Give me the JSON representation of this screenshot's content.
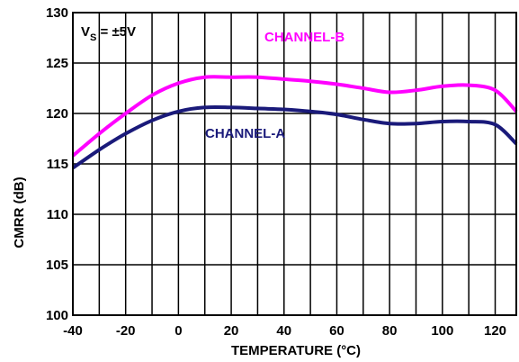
{
  "chart_data": {
    "type": "line",
    "xlabel": "TEMPERATURE (°C)",
    "ylabel": "CMRR (dB)",
    "xlim": [
      -40,
      128
    ],
    "ylim": [
      100,
      130
    ],
    "x_ticks": [
      -40,
      -20,
      0,
      20,
      40,
      60,
      80,
      100,
      120
    ],
    "y_ticks": [
      100,
      105,
      110,
      115,
      120,
      125,
      130
    ],
    "x_tick_labels": [
      "-40",
      "-20",
      "0",
      "20",
      "40",
      "60",
      "80",
      "100",
      "120"
    ],
    "y_tick_labels": [
      "100",
      "105",
      "110",
      "115",
      "120",
      "125",
      "130"
    ],
    "grid": true,
    "annotation": {
      "main": "V",
      "subscript": "S",
      "rest": " = ±5V"
    },
    "series": [
      {
        "name": "CHANNEL-B",
        "color": "#ff00ff",
        "x": [
          -40,
          -30,
          -20,
          -10,
          0,
          10,
          20,
          30,
          40,
          50,
          60,
          70,
          80,
          90,
          100,
          110,
          120,
          128
        ],
        "y": [
          115.8,
          118.0,
          120.0,
          121.8,
          123.0,
          123.6,
          123.6,
          123.6,
          123.4,
          123.2,
          122.9,
          122.5,
          122.1,
          122.3,
          122.7,
          122.8,
          122.3,
          120.2
        ]
      },
      {
        "name": "CHANNEL-A",
        "color": "#1a1a7a",
        "x": [
          -40,
          -30,
          -20,
          -10,
          0,
          10,
          20,
          30,
          40,
          50,
          60,
          70,
          80,
          90,
          100,
          110,
          120,
          128
        ],
        "y": [
          114.6,
          116.4,
          118.0,
          119.3,
          120.2,
          120.6,
          120.6,
          120.5,
          120.4,
          120.2,
          119.9,
          119.4,
          119.0,
          119.0,
          119.2,
          119.2,
          118.9,
          117.0
        ]
      }
    ]
  }
}
